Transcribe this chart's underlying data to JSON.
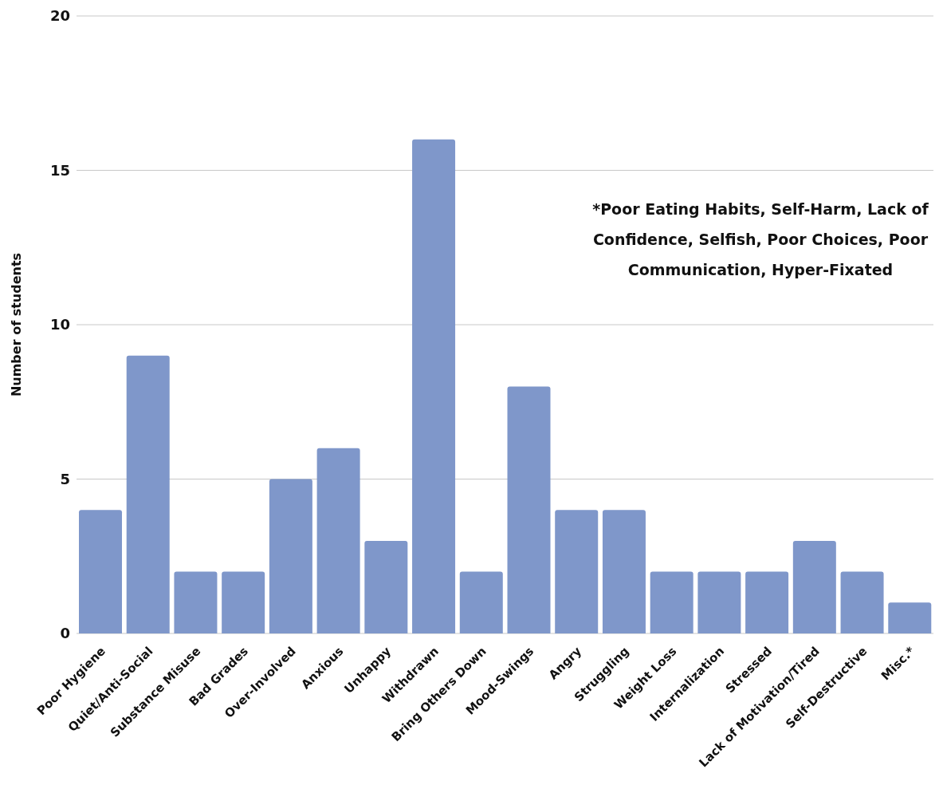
{
  "chart_data": {
    "type": "bar",
    "categories": [
      "Poor Hygiene",
      "Quiet/Anti-Social",
      "Substance Misuse",
      "Bad Grades",
      "Over-Involved",
      "Anxious",
      "Unhappy",
      "Withdrawn",
      "Bring Others Down",
      "Mood-Swings",
      "Angry",
      "Struggling",
      "Weight Loss",
      "Internalization",
      "Stressed",
      "Lack of Motivation/Tired",
      "Self-Destructive",
      "Misc.*"
    ],
    "values": [
      4,
      9,
      2,
      2,
      5,
      6,
      3,
      16,
      2,
      8,
      4,
      4,
      2,
      2,
      2,
      3,
      2,
      1
    ],
    "color": "#7f97ca",
    "ylabel": "Number of students",
    "ylim": [
      0,
      20
    ],
    "yticks": [
      0,
      5,
      10,
      15,
      20
    ],
    "grid": "y",
    "annotations": [
      "*Poor Eating Habits, Self-Harm, Lack of Confidence, Selfish, Poor Choices, Poor Communication, Hyper-Fixated"
    ]
  }
}
